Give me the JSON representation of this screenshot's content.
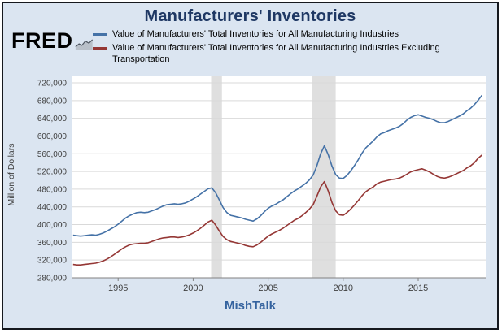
{
  "header": {
    "title": "Manufacturers' Inventories",
    "brand": "FRED",
    "source_label": "MishTalk"
  },
  "legend": {
    "items": [
      {
        "label": "Value of Manufacturers' Total Inventories for All Manufacturing Industries",
        "color": "#4572a7"
      },
      {
        "label": "Value of Manufacturers' Total Inventories for All Manufacturing Industries Excluding Transportation",
        "color": "#953735"
      }
    ]
  },
  "chart_data": {
    "type": "line",
    "title": "Manufacturers' Inventories",
    "xlabel": "",
    "ylabel": "Million of Dollars",
    "x_start": 1992.0,
    "x_step": 0.25,
    "xlim": [
      1991.9,
      2019.5
    ],
    "ylim": [
      280000,
      720000
    ],
    "yticks": [
      280000,
      320000,
      360000,
      400000,
      440000,
      480000,
      520000,
      560000,
      600000,
      640000,
      680000,
      720000
    ],
    "ytick_format": "comma",
    "xticks": [
      1995,
      2000,
      2005,
      2010,
      2015
    ],
    "grid": true,
    "legend_position": "top",
    "grid_color": "#d9d9d9",
    "band_color": "#dfdfdf",
    "recession_bands": [
      [
        2001.2,
        2001.92
      ],
      [
        2007.95,
        2009.5
      ]
    ],
    "series": [
      {
        "name": "Value of Manufacturers' Total Inventories for All Manufacturing Industries",
        "color": "#4572a7",
        "values": [
          376000,
          375000,
          374000,
          375000,
          376000,
          377000,
          376000,
          378000,
          381000,
          385000,
          390000,
          395000,
          401000,
          408000,
          415000,
          420000,
          424000,
          427000,
          428000,
          427000,
          428000,
          431000,
          434000,
          438000,
          442000,
          445000,
          446000,
          447000,
          446000,
          447000,
          449000,
          453000,
          458000,
          463000,
          469000,
          475000,
          481000,
          483000,
          472000,
          455000,
          438000,
          427000,
          421000,
          419000,
          417000,
          415000,
          412000,
          410000,
          408000,
          413000,
          420000,
          429000,
          437000,
          442000,
          446000,
          451000,
          456000,
          463000,
          470000,
          476000,
          481000,
          487000,
          493000,
          501000,
          512000,
          533000,
          560000,
          578000,
          558000,
          532000,
          513000,
          505000,
          504000,
          511000,
          521000,
          533000,
          546000,
          561000,
          573000,
          581000,
          589000,
          598000,
          605000,
          608000,
          612000,
          615000,
          618000,
          622000,
          628000,
          636000,
          642000,
          646000,
          648000,
          645000,
          642000,
          640000,
          637000,
          633000,
          630000,
          630000,
          633000,
          637000,
          641000,
          645000,
          650000,
          657000,
          663000,
          671000,
          681000,
          692000
        ]
      },
      {
        "name": "Value of Manufacturers' Total Inventories for All Manufacturing Industries Excluding Transportation",
        "color": "#953735",
        "values": [
          310000,
          309000,
          309000,
          310000,
          311000,
          312000,
          313000,
          315000,
          318000,
          322000,
          327000,
          333000,
          339000,
          345000,
          350000,
          354000,
          356000,
          357000,
          358000,
          358000,
          359000,
          362000,
          365000,
          368000,
          370000,
          371000,
          372000,
          372000,
          371000,
          372000,
          374000,
          377000,
          381000,
          386000,
          392000,
          399000,
          406000,
          410000,
          399000,
          385000,
          373000,
          366000,
          362000,
          360000,
          358000,
          356000,
          353000,
          351000,
          350000,
          354000,
          360000,
          367000,
          374000,
          379000,
          383000,
          387000,
          392000,
          398000,
          404000,
          410000,
          414000,
          420000,
          427000,
          435000,
          445000,
          464000,
          485000,
          497000,
          476000,
          450000,
          431000,
          422000,
          421000,
          427000,
          435000,
          444000,
          454000,
          465000,
          474000,
          480000,
          485000,
          492000,
          496000,
          498000,
          500000,
          502000,
          503000,
          505000,
          509000,
          514000,
          519000,
          522000,
          524000,
          526000,
          523000,
          519000,
          514000,
          509000,
          506000,
          505000,
          507000,
          510000,
          514000,
          518000,
          522000,
          528000,
          533000,
          540000,
          550000,
          557000
        ]
      }
    ]
  }
}
